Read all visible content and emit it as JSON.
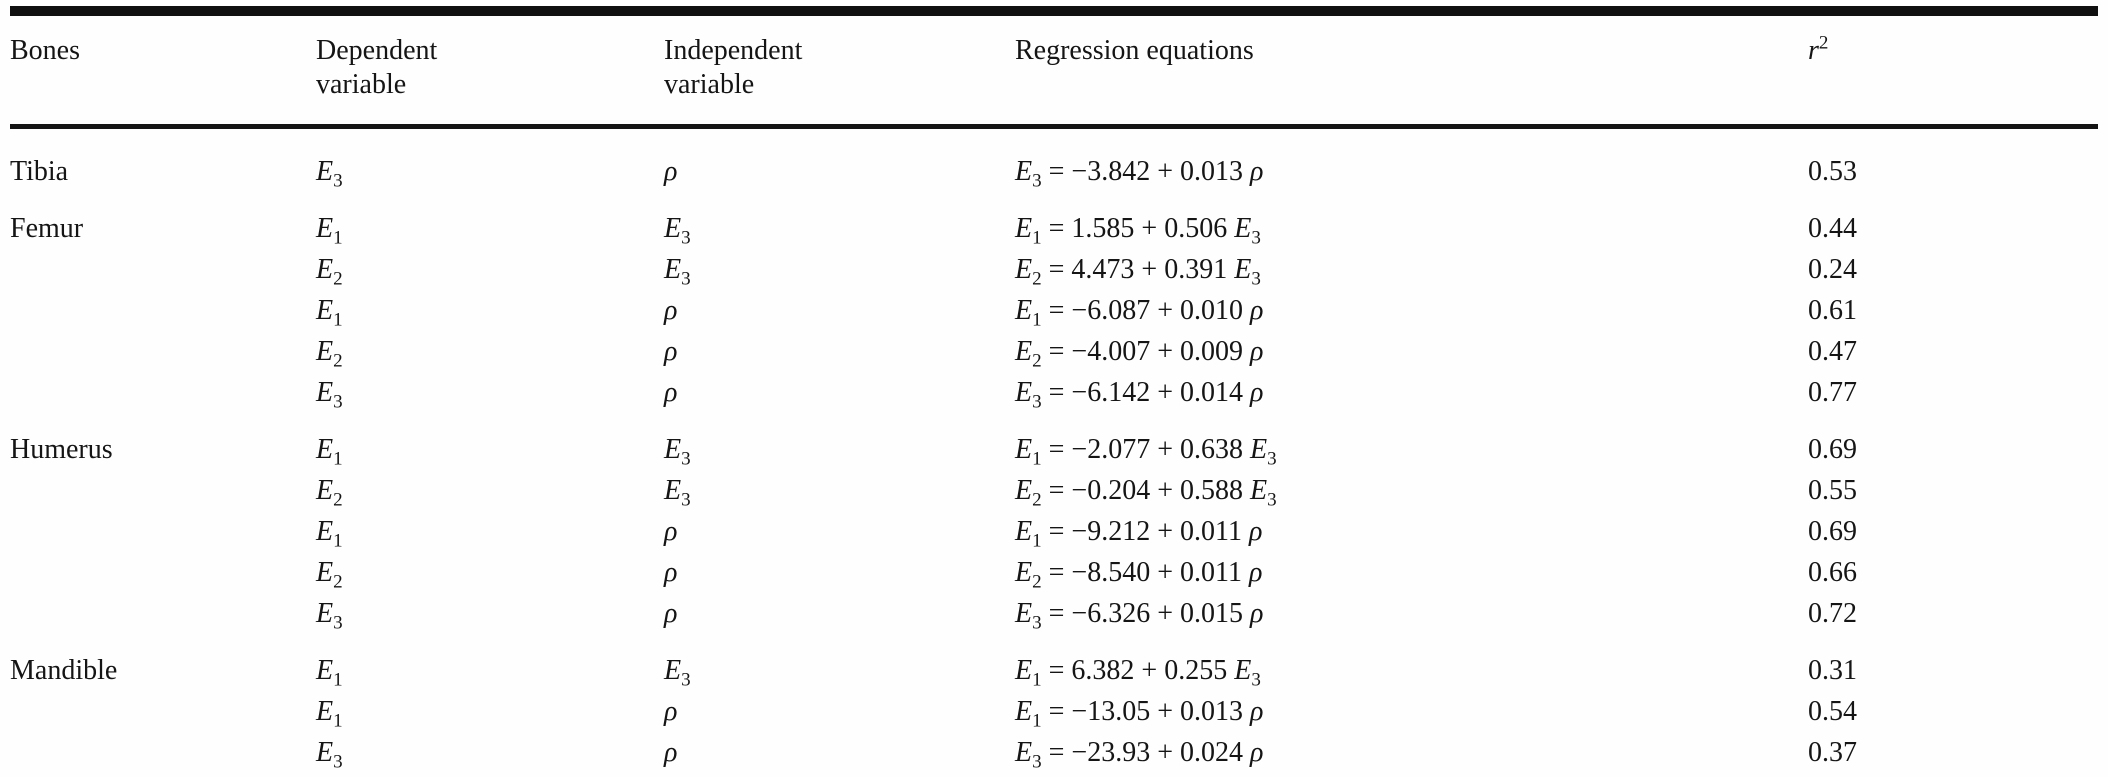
{
  "page": {
    "background_color": "#fefefe",
    "text_color": "#151515",
    "rule_color": "#101010"
  },
  "table": {
    "headers": {
      "bones": "Bones",
      "dependent_line1": "Dependent",
      "dependent_line2": "variable",
      "independent_line1": "Independent",
      "independent_line2": "variable",
      "regression": "Regression equations",
      "r2_base": "r",
      "r2_sup": "2"
    },
    "rows": [
      {
        "bone": "Tibia",
        "group_start": true,
        "dep_base": "E",
        "dep_sub": "3",
        "indep_base": "ρ",
        "indep_sub": "",
        "eq_lhs_base": "E",
        "eq_lhs_sub": "3",
        "eq_body": " = −3.842 + 0.013 ",
        "eq_tail_base": "ρ",
        "eq_tail_sub": "",
        "r2": "0.53"
      },
      {
        "bone": "Femur",
        "group_start": true,
        "dep_base": "E",
        "dep_sub": "1",
        "indep_base": "E",
        "indep_sub": "3",
        "eq_lhs_base": "E",
        "eq_lhs_sub": "1",
        "eq_body": " = 1.585 + 0.506 ",
        "eq_tail_base": "E",
        "eq_tail_sub": "3",
        "r2": "0.44"
      },
      {
        "bone": "",
        "group_start": false,
        "dep_base": "E",
        "dep_sub": "2",
        "indep_base": "E",
        "indep_sub": "3",
        "eq_lhs_base": "E",
        "eq_lhs_sub": "2",
        "eq_body": " = 4.473 + 0.391 ",
        "eq_tail_base": "E",
        "eq_tail_sub": "3",
        "r2": "0.24"
      },
      {
        "bone": "",
        "group_start": false,
        "dep_base": "E",
        "dep_sub": "1",
        "indep_base": "ρ",
        "indep_sub": "",
        "eq_lhs_base": "E",
        "eq_lhs_sub": "1",
        "eq_body": " = −6.087 + 0.010 ",
        "eq_tail_base": "ρ",
        "eq_tail_sub": "",
        "r2": "0.61"
      },
      {
        "bone": "",
        "group_start": false,
        "dep_base": "E",
        "dep_sub": "2",
        "indep_base": "ρ",
        "indep_sub": "",
        "eq_lhs_base": "E",
        "eq_lhs_sub": "2",
        "eq_body": " = −4.007 + 0.009 ",
        "eq_tail_base": "ρ",
        "eq_tail_sub": "",
        "r2": "0.47"
      },
      {
        "bone": "",
        "group_start": false,
        "dep_base": "E",
        "dep_sub": "3",
        "indep_base": "ρ",
        "indep_sub": "",
        "eq_lhs_base": "E",
        "eq_lhs_sub": "3",
        "eq_body": " = −6.142 + 0.014 ",
        "eq_tail_base": "ρ",
        "eq_tail_sub": "",
        "r2": "0.77"
      },
      {
        "bone": "Humerus",
        "group_start": true,
        "dep_base": "E",
        "dep_sub": "1",
        "indep_base": "E",
        "indep_sub": "3",
        "eq_lhs_base": "E",
        "eq_lhs_sub": "1",
        "eq_body": " = −2.077 + 0.638 ",
        "eq_tail_base": "E",
        "eq_tail_sub": "3",
        "r2": "0.69"
      },
      {
        "bone": "",
        "group_start": false,
        "dep_base": "E",
        "dep_sub": "2",
        "indep_base": "E",
        "indep_sub": "3",
        "eq_lhs_base": "E",
        "eq_lhs_sub": "2",
        "eq_body": " = −0.204 + 0.588 ",
        "eq_tail_base": "E",
        "eq_tail_sub": "3",
        "r2": "0.55"
      },
      {
        "bone": "",
        "group_start": false,
        "dep_base": "E",
        "dep_sub": "1",
        "indep_base": "ρ",
        "indep_sub": "",
        "eq_lhs_base": "E",
        "eq_lhs_sub": "1",
        "eq_body": " = −9.212 + 0.011 ",
        "eq_tail_base": "ρ",
        "eq_tail_sub": "",
        "r2": "0.69"
      },
      {
        "bone": "",
        "group_start": false,
        "dep_base": "E",
        "dep_sub": "2",
        "indep_base": "ρ",
        "indep_sub": "",
        "eq_lhs_base": "E",
        "eq_lhs_sub": "2",
        "eq_body": " = −8.540 + 0.011 ",
        "eq_tail_base": "ρ",
        "eq_tail_sub": "",
        "r2": "0.66"
      },
      {
        "bone": "",
        "group_start": false,
        "dep_base": "E",
        "dep_sub": "3",
        "indep_base": "ρ",
        "indep_sub": "",
        "eq_lhs_base": "E",
        "eq_lhs_sub": "3",
        "eq_body": " = −6.326 + 0.015 ",
        "eq_tail_base": "ρ",
        "eq_tail_sub": "",
        "r2": "0.72"
      },
      {
        "bone": "Mandible",
        "group_start": true,
        "dep_base": "E",
        "dep_sub": "1",
        "indep_base": "E",
        "indep_sub": "3",
        "eq_lhs_base": "E",
        "eq_lhs_sub": "1",
        "eq_body": " = 6.382 + 0.255 ",
        "eq_tail_base": "E",
        "eq_tail_sub": "3",
        "r2": "0.31"
      },
      {
        "bone": "",
        "group_start": false,
        "dep_base": "E",
        "dep_sub": "1",
        "indep_base": "ρ",
        "indep_sub": "",
        "eq_lhs_base": "E",
        "eq_lhs_sub": "1",
        "eq_body": " = −13.05 + 0.013 ",
        "eq_tail_base": "ρ",
        "eq_tail_sub": "",
        "r2": "0.54"
      },
      {
        "bone": "",
        "group_start": false,
        "dep_base": "E",
        "dep_sub": "3",
        "indep_base": "ρ",
        "indep_sub": "",
        "eq_lhs_base": "E",
        "eq_lhs_sub": "3",
        "eq_body": " = −23.93 + 0.024 ",
        "eq_tail_base": "ρ",
        "eq_tail_sub": "",
        "r2": "0.37"
      }
    ]
  }
}
